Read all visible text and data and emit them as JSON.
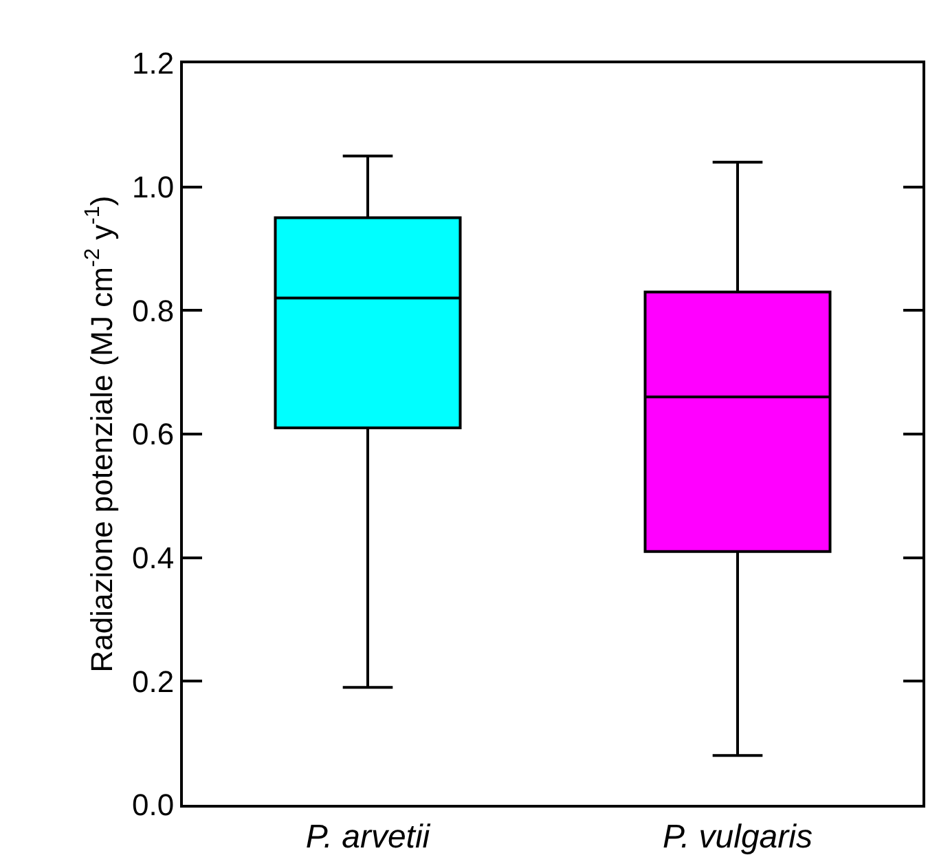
{
  "chart_data": {
    "type": "box",
    "ylabel": "Radiazione potenziale (MJ cm$^{-2}$ y$^{-1}$)",
    "categories": [
      "P. arvetii",
      "P. vulgaris"
    ],
    "colors": [
      "#00ffff",
      "#ff00ff"
    ],
    "boxes": [
      {
        "low": 0.19,
        "q1": 0.61,
        "median": 0.82,
        "q3": 0.95,
        "high": 1.05
      },
      {
        "low": 0.08,
        "q1": 0.41,
        "median": 0.66,
        "q3": 0.83,
        "high": 1.04
      }
    ],
    "ylim": [
      0,
      1.2
    ],
    "yticks": [
      {
        "value": 0,
        "label": "0.0"
      },
      {
        "value": 0.2,
        "label": "0.2"
      },
      {
        "value": 0.4,
        "label": "0.4"
      },
      {
        "value": 0.6,
        "label": "0.6"
      },
      {
        "value": 0.8,
        "label": "0.8"
      },
      {
        "value": 1,
        "label": "1.0"
      },
      {
        "value": 1.2,
        "label": "1.2"
      }
    ],
    "grid": false,
    "legend": false
  }
}
